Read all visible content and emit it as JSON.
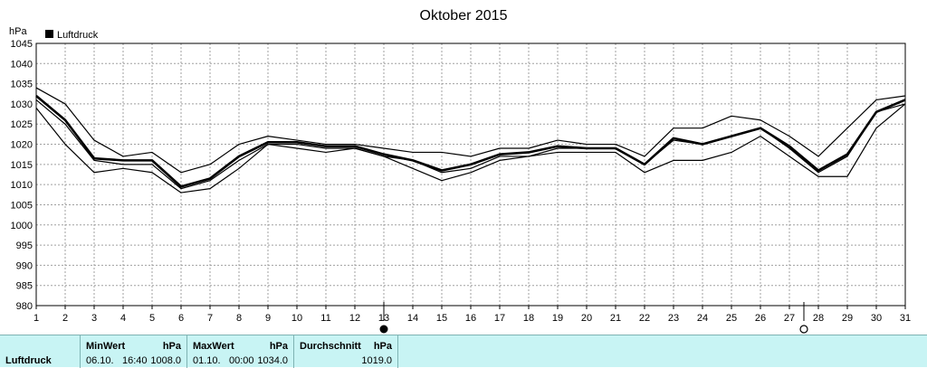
{
  "chart_data": {
    "type": "line",
    "title": "Oktober 2015",
    "ylabel": "hPa",
    "legend": {
      "label": "Luftdruck",
      "placement": "top-left"
    },
    "ylim": [
      980,
      1045
    ],
    "yticks": [
      "1045",
      "1040",
      "1035",
      "1030",
      "1025",
      "1020",
      "1015",
      "1010",
      "1005",
      "1000",
      "995",
      "990",
      "985",
      "980"
    ],
    "x": [
      1,
      2,
      3,
      4,
      5,
      6,
      7,
      8,
      9,
      10,
      11,
      12,
      13,
      14,
      15,
      16,
      17,
      18,
      19,
      20,
      21,
      22,
      23,
      24,
      25,
      26,
      27,
      28,
      29,
      30,
      31
    ],
    "grid": true,
    "series": [
      {
        "role": "max",
        "values": [
          1034,
          1030,
          1021,
          1017,
          1018,
          1013,
          1015,
          1020,
          1022,
          1021,
          1020,
          1020,
          1019,
          1018,
          1018,
          1017,
          1019,
          1019,
          1021,
          1020,
          1020,
          1017,
          1024,
          1024,
          1027,
          1026,
          1022,
          1017,
          1024,
          1031,
          1032
        ]
      },
      {
        "role": "avg",
        "values": [
          1032,
          1026,
          1016.5,
          1016,
          1016,
          1009.5,
          1011.5,
          1017,
          1020.5,
          1020.5,
          1019.5,
          1019.5,
          1017.5,
          1016,
          1013.5,
          1015,
          1017.5,
          1018,
          1019.5,
          1019,
          1019,
          1015,
          1021.5,
          1020,
          1022,
          1024,
          1019.5,
          1013.5,
          1017.5,
          1028,
          1031
        ]
      },
      {
        "role": "mid",
        "values": [
          1031,
          1025,
          1016,
          1015,
          1015,
          1009,
          1011,
          1016,
          1020,
          1020,
          1019,
          1019,
          1017,
          1016,
          1013,
          1014,
          1017,
          1017,
          1019,
          1019,
          1019,
          1015,
          1021,
          1020,
          1022,
          1024,
          1019,
          1013,
          1017,
          1028,
          1030
        ]
      },
      {
        "role": "min",
        "values": [
          1029,
          1020,
          1013,
          1014,
          1013,
          1008,
          1009,
          1014,
          1020,
          1019,
          1018,
          1019,
          1017,
          1014,
          1011,
          1013,
          1016,
          1017,
          1018,
          1018,
          1018,
          1013,
          1016,
          1016,
          1018,
          1022,
          1017,
          1012,
          1012,
          1024,
          1030
        ]
      }
    ],
    "moon_phases": [
      {
        "day": 13,
        "phase": "new-moon"
      },
      {
        "day": 27.5,
        "phase": "full-moon"
      }
    ]
  },
  "stats": {
    "label": "Luftdruck",
    "min": {
      "header": "MinWert",
      "unit": "hPa",
      "date": "06.10.",
      "time": "16:40",
      "value": "1008.0"
    },
    "max": {
      "header": "MaxWert",
      "unit": "hPa",
      "date": "01.10.",
      "time": "00:00",
      "value": "1034.0"
    },
    "avg": {
      "header": "Durchschnitt",
      "unit": "hPa",
      "value": "1019.0"
    }
  }
}
